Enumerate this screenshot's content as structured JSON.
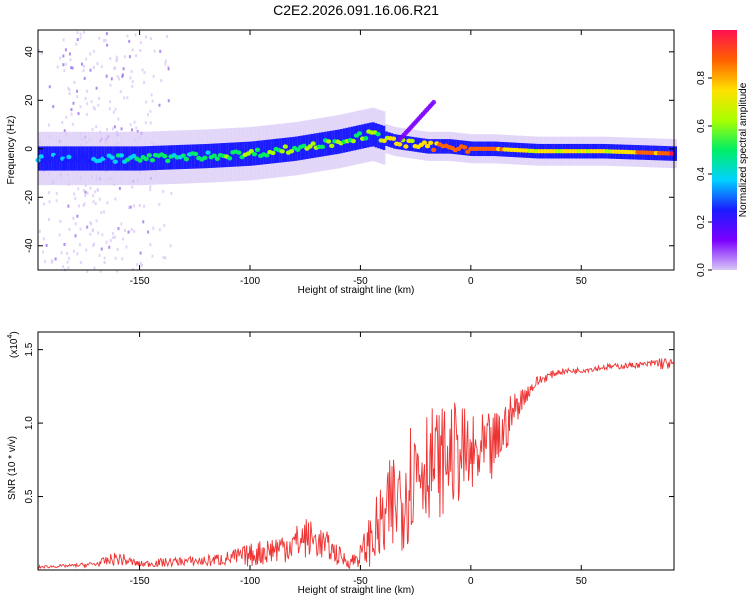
{
  "figure": {
    "title": "C2E2.2026.091.16.06.R21"
  },
  "chart_data": [
    {
      "type": "heatmap",
      "panel": "top",
      "title": "C2E2.2026.091.16.06.R21",
      "xlabel": "Height of straight line (km)",
      "ylabel": "Frequency (Hz)",
      "xlim": [
        -196,
        92
      ],
      "ylim": [
        -50,
        49
      ],
      "xticks": [
        -150,
        -100,
        -50,
        0,
        50
      ],
      "yticks": [
        -40,
        -20,
        0,
        20,
        40
      ],
      "colorbar": {
        "label": "Normalized spectral amplitude",
        "range": [
          0,
          1
        ],
        "ticks": [
          "0.0",
          "0.2",
          "0.4",
          "0.6",
          "0.8"
        ],
        "tick_values": [
          0.0,
          0.2,
          0.4,
          0.6,
          0.8
        ],
        "colors": [
          "#d8c8f6",
          "#7a00ff",
          "#1b1bff",
          "#00d2ff",
          "#00ee66",
          "#aaff00",
          "#ffe000",
          "#ff6000",
          "#ff1050"
        ]
      },
      "ridge": {
        "description": "peak frequency vs height",
        "x": [
          -196,
          -170,
          -150,
          -120,
          -100,
          -80,
          -60,
          -45,
          -35,
          -20,
          -10,
          0,
          10,
          30,
          60,
          92
        ],
        "y": [
          -4,
          -4,
          -4,
          -3,
          -2,
          0,
          3,
          6,
          3,
          1,
          1,
          0,
          0,
          -1,
          -1,
          -2
        ],
        "amplitude": [
          0.3,
          0.35,
          0.45,
          0.5,
          0.55,
          0.55,
          0.6,
          0.6,
          0.65,
          0.75,
          0.85,
          0.9,
          0.85,
          0.7,
          0.7,
          0.9
        ]
      },
      "branch": {
        "description": "secondary rising component",
        "x": [
          -32,
          -28,
          -24,
          -20,
          -16
        ],
        "y": [
          4,
          8,
          12,
          16,
          20
        ]
      }
    },
    {
      "type": "line",
      "panel": "bottom",
      "xlabel": "Height of straight line (km)",
      "ylabel": "SNR (10 * v/v)",
      "y_multiplier": "(x10",
      "y_exponent": "4",
      "y_multiplier_close": ")",
      "xlim": [
        -196,
        92
      ],
      "ylim": [
        0,
        1.62
      ],
      "xticks": [
        -150,
        -100,
        -50,
        0,
        50
      ],
      "yticks": [
        0.5,
        1.0,
        1.5
      ],
      "ytick_labels": [
        "0.5",
        "1.0",
        "1.5"
      ],
      "color": "#ee3333",
      "series": [
        {
          "name": "SNR",
          "x": [
            -196,
            -180,
            -170,
            -160,
            -150,
            -140,
            -130,
            -120,
            -110,
            -100,
            -90,
            -80,
            -75,
            -70,
            -65,
            -60,
            -55,
            -50,
            -45,
            -40,
            -35,
            -30,
            -25,
            -20,
            -15,
            -10,
            -5,
            0,
            5,
            10,
            15,
            20,
            25,
            30,
            35,
            40,
            50,
            60,
            70,
            80,
            85,
            92
          ],
          "y": [
            0.02,
            0.03,
            0.04,
            0.08,
            0.04,
            0.05,
            0.06,
            0.06,
            0.08,
            0.1,
            0.14,
            0.18,
            0.22,
            0.2,
            0.16,
            0.1,
            0.05,
            0.1,
            0.22,
            0.3,
            0.45,
            0.55,
            0.7,
            0.75,
            0.72,
            0.78,
            0.8,
            0.75,
            0.78,
            0.82,
            0.95,
            1.1,
            1.2,
            1.28,
            1.32,
            1.35,
            1.36,
            1.38,
            1.39,
            1.4,
            1.41,
            1.4
          ],
          "noise": [
            0.01,
            0.01,
            0.02,
            0.05,
            0.02,
            0.03,
            0.03,
            0.04,
            0.05,
            0.08,
            0.1,
            0.12,
            0.14,
            0.12,
            0.1,
            0.07,
            0.04,
            0.08,
            0.2,
            0.3,
            0.38,
            0.42,
            0.42,
            0.4,
            0.38,
            0.36,
            0.34,
            0.3,
            0.28,
            0.25,
            0.2,
            0.12,
            0.06,
            0.04,
            0.03,
            0.02,
            0.02,
            0.02,
            0.02,
            0.02,
            0.05,
            0.03
          ]
        }
      ]
    }
  ]
}
